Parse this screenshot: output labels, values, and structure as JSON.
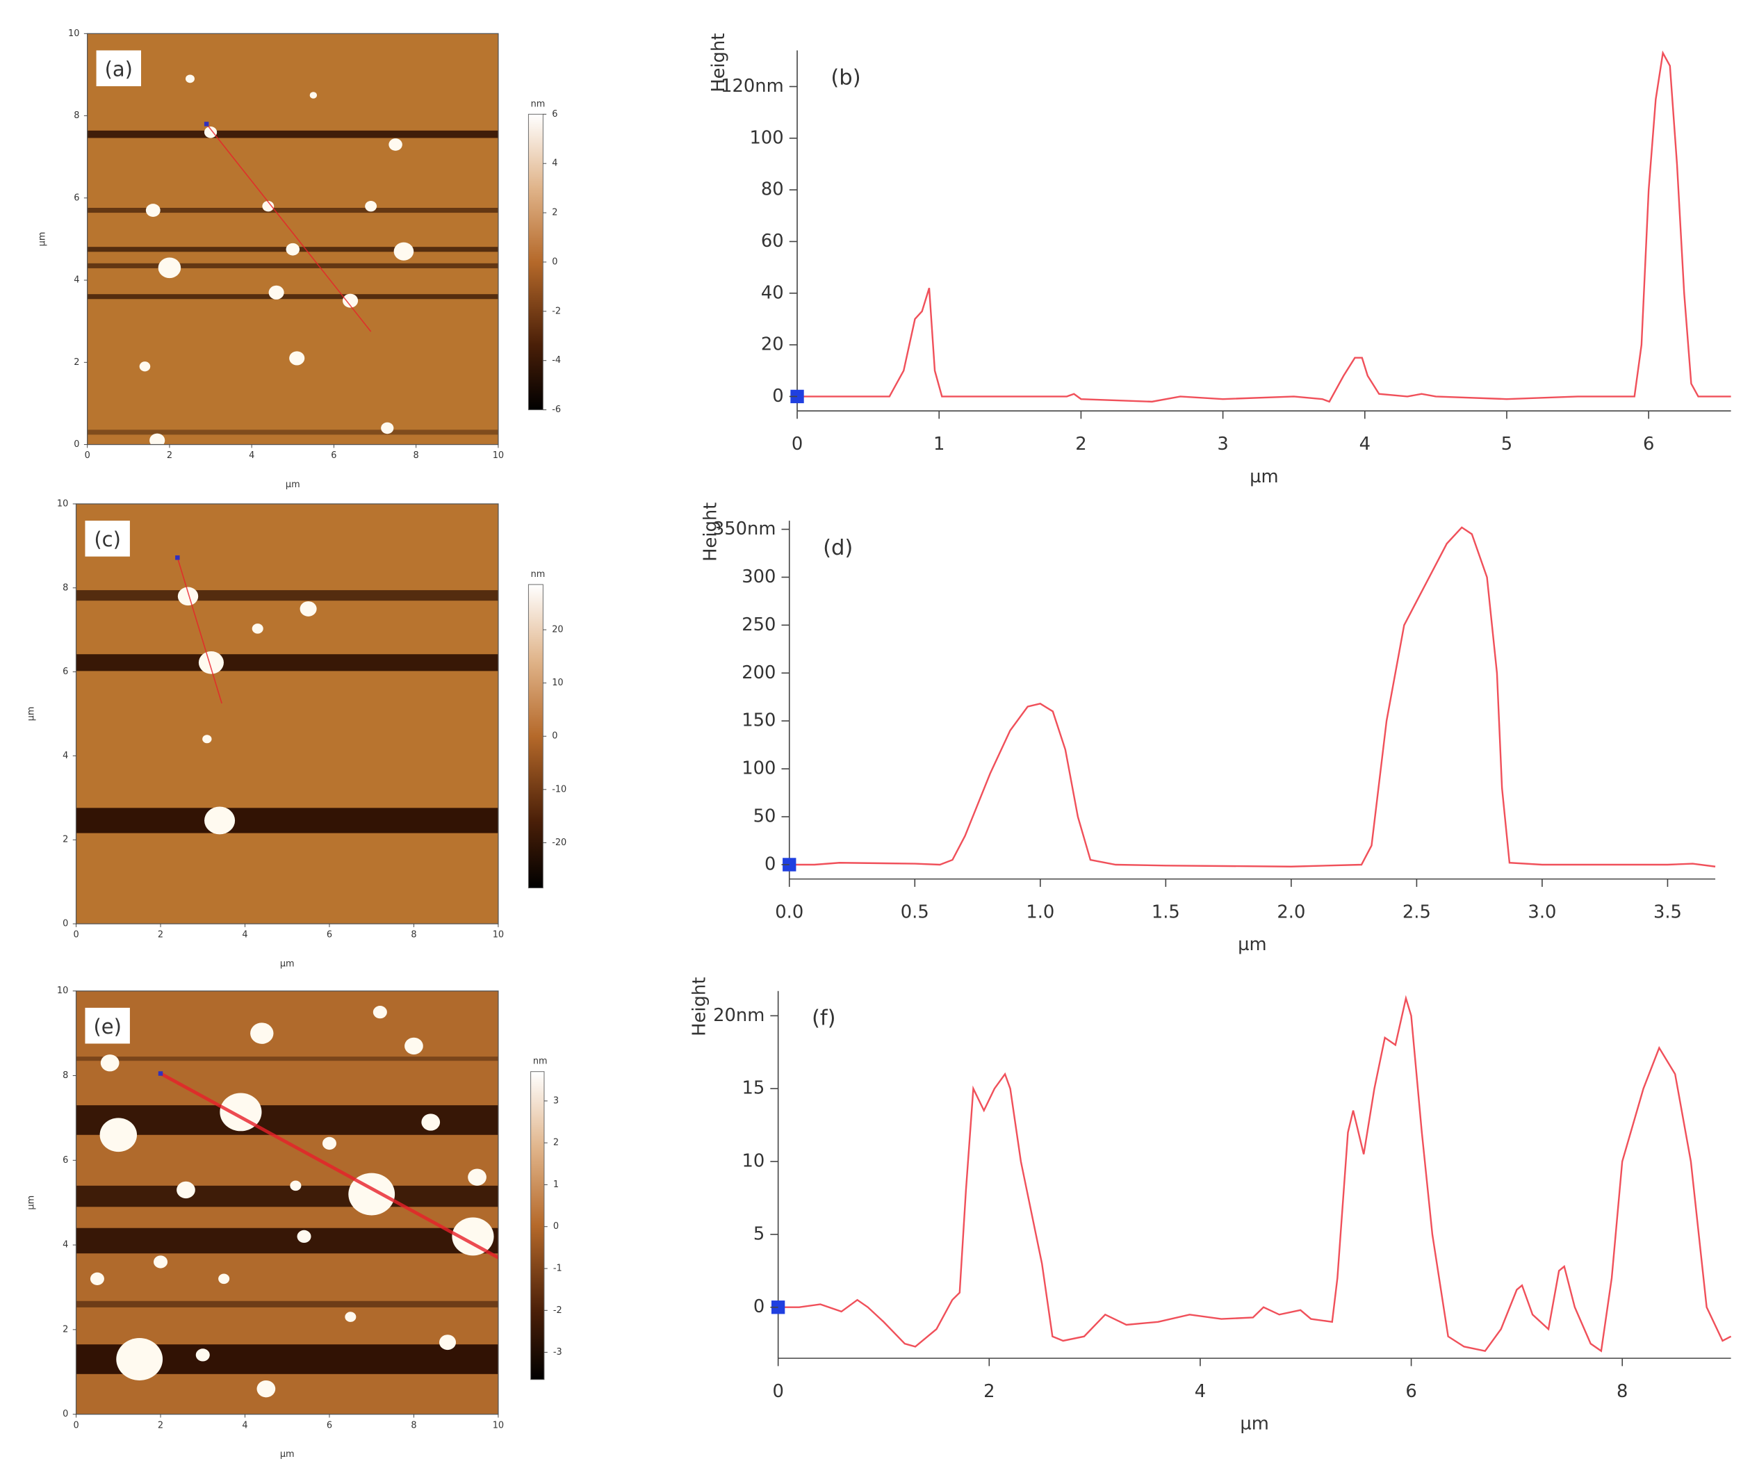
{
  "chart_data": [
    {
      "type": "image",
      "annotation": "(a)",
      "xlabel": "µm",
      "ylabel": "µm",
      "xlim": [
        0,
        10
      ],
      "ylim": [
        0,
        10
      ],
      "xticks": [
        0,
        2,
        4,
        6,
        8,
        10
      ],
      "yticks": [
        0,
        2,
        4,
        6,
        8,
        10
      ],
      "colorbar": {
        "label": "nm",
        "lim": [
          -6,
          6
        ],
        "ticks": [
          6,
          4,
          2,
          0,
          -2,
          -4,
          -6
        ]
      }
    },
    {
      "type": "line",
      "annotation": "(b)",
      "xlabel": "µm",
      "ylabel": "Height",
      "color": "#f0505a",
      "xlim": [
        0,
        6.58
      ],
      "ylim": [
        -5.6,
        134
      ],
      "xticks": [
        0,
        1,
        2,
        3,
        4,
        5,
        6
      ],
      "yticks": [
        0,
        20,
        40,
        60,
        80,
        100,
        {
          "value": 120,
          "label": "120nm"
        }
      ],
      "x": [
        0,
        0.5,
        0.65,
        0.75,
        0.83,
        0.88,
        0.93,
        0.97,
        1.02,
        1.9,
        1.95,
        2.0,
        2.5,
        2.7,
        3.0,
        3.5,
        3.7,
        3.75,
        3.85,
        3.93,
        3.98,
        4.02,
        4.1,
        4.3,
        4.4,
        4.5,
        5.0,
        5.5,
        5.9,
        5.95,
        6.0,
        6.05,
        6.1,
        6.15,
        6.2,
        6.25,
        6.3,
        6.35,
        6.58
      ],
      "values": [
        0,
        0,
        0,
        10,
        30,
        33,
        42,
        10,
        0,
        0,
        1,
        -1,
        -2,
        0,
        -1,
        0,
        -1,
        -2,
        8,
        15,
        15,
        8,
        1,
        0,
        1,
        0,
        -1,
        0,
        0,
        20,
        80,
        115,
        133,
        128,
        90,
        40,
        5,
        0,
        0
      ]
    },
    {
      "type": "image",
      "annotation": "(c)",
      "xlabel": "µm",
      "ylabel": "µm",
      "xlim": [
        0,
        10
      ],
      "ylim": [
        0,
        10
      ],
      "xticks": [
        0,
        2,
        4,
        6,
        8,
        10
      ],
      "yticks": [
        0,
        2,
        4,
        6,
        8,
        10
      ],
      "colorbar": {
        "label": "nm",
        "lim": [
          -28.5,
          28.5
        ],
        "ticks": [
          20,
          10,
          0,
          -10,
          -20
        ]
      }
    },
    {
      "type": "line",
      "annotation": "(d)",
      "xlabel": "µm",
      "ylabel": "Height",
      "color": "#f0505a",
      "xlim": [
        0,
        3.69
      ],
      "ylim": [
        -15,
        359
      ],
      "xticks": [
        {
          "value": 0,
          "label": "0.0"
        },
        0.5,
        {
          "value": 1,
          "label": "1.0"
        },
        1.5,
        {
          "value": 2,
          "label": "2.0"
        },
        2.5,
        {
          "value": 3,
          "label": "3.0"
        },
        3.5
      ],
      "yticks": [
        0,
        50,
        100,
        150,
        200,
        250,
        300,
        {
          "value": 350,
          "label": "350nm"
        }
      ],
      "x": [
        0,
        0.1,
        0.2,
        0.5,
        0.6,
        0.65,
        0.7,
        0.8,
        0.88,
        0.95,
        1.0,
        1.05,
        1.1,
        1.15,
        1.2,
        1.3,
        1.5,
        2.0,
        2.28,
        2.32,
        2.38,
        2.45,
        2.55,
        2.62,
        2.68,
        2.72,
        2.78,
        2.82,
        2.84,
        2.87,
        3.0,
        3.5,
        3.6,
        3.69
      ],
      "values": [
        0,
        0,
        2,
        1,
        0,
        5,
        30,
        95,
        140,
        165,
        168,
        160,
        120,
        50,
        5,
        0,
        -1,
        -2,
        0,
        20,
        150,
        250,
        300,
        335,
        352,
        345,
        300,
        200,
        80,
        2,
        0,
        0,
        1,
        -2
      ]
    },
    {
      "type": "image",
      "annotation": "(e)",
      "xlabel": "µm",
      "ylabel": "µm",
      "xlim": [
        0,
        10
      ],
      "ylim": [
        0,
        10
      ],
      "xticks": [
        0,
        2,
        4,
        6,
        8,
        10
      ],
      "yticks": [
        0,
        2,
        4,
        6,
        8,
        10
      ],
      "colorbar": {
        "label": "nm",
        "lim": [
          -3.65,
          3.7
        ],
        "ticks": [
          3,
          2,
          1,
          0,
          -1,
          -2,
          -3
        ]
      }
    },
    {
      "type": "line",
      "annotation": "(f)",
      "xlabel": "µm",
      "ylabel": "Height",
      "color": "#f0505a",
      "xlim": [
        0,
        9.03
      ],
      "ylim": [
        -3.5,
        21.7
      ],
      "xticks": [
        0,
        2,
        4,
        6,
        8
      ],
      "yticks": [
        0,
        5,
        10,
        15,
        {
          "value": 20,
          "label": "20nm"
        }
      ],
      "x": [
        0,
        0.2,
        0.4,
        0.6,
        0.75,
        0.85,
        1.0,
        1.2,
        1.3,
        1.5,
        1.65,
        1.72,
        1.78,
        1.85,
        1.95,
        2.05,
        2.15,
        2.2,
        2.3,
        2.5,
        2.6,
        2.7,
        2.9,
        3.1,
        3.3,
        3.6,
        3.9,
        4.2,
        4.5,
        4.6,
        4.75,
        4.95,
        5.05,
        5.25,
        5.3,
        5.4,
        5.45,
        5.55,
        5.65,
        5.75,
        5.85,
        5.95,
        6.0,
        6.1,
        6.2,
        6.35,
        6.5,
        6.7,
        6.85,
        7.0,
        7.05,
        7.15,
        7.3,
        7.4,
        7.45,
        7.55,
        7.7,
        7.8,
        7.9,
        8.0,
        8.2,
        8.35,
        8.5,
        8.65,
        8.8,
        8.95,
        9.03
      ],
      "values": [
        0,
        0,
        0.2,
        -0.3,
        0.5,
        0,
        -1,
        -2.5,
        -2.7,
        -1.5,
        0.5,
        1,
        8,
        15,
        13.5,
        15,
        16,
        15,
        10,
        3,
        -2,
        -2.3,
        -2,
        -0.5,
        -1.2,
        -1,
        -0.5,
        -0.8,
        -0.7,
        0,
        -0.5,
        -0.2,
        -0.8,
        -1,
        2,
        12,
        13.5,
        10.5,
        15,
        18.5,
        18,
        21.2,
        20,
        12,
        5,
        -2,
        -2.7,
        -3,
        -1.5,
        1.2,
        1.5,
        -0.5,
        -1.5,
        2.5,
        2.8,
        0,
        -2.5,
        -3,
        2,
        10,
        15,
        17.8,
        16,
        10,
        0,
        -2.3,
        -2
      ]
    }
  ]
}
